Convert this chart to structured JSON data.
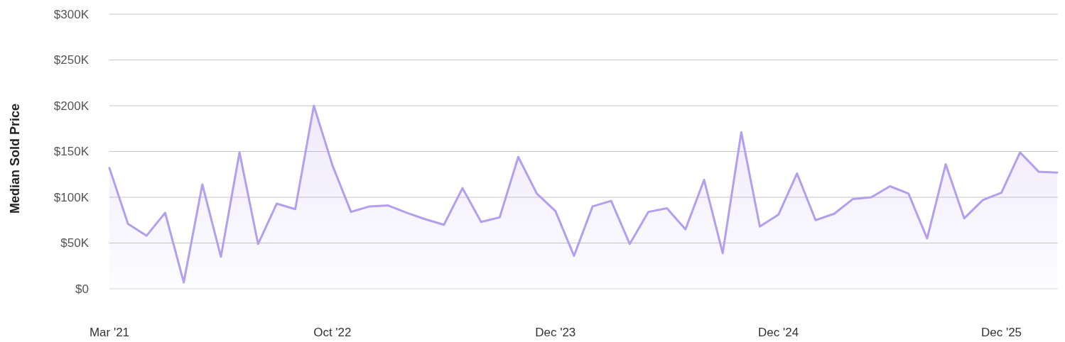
{
  "chart_data": {
    "type": "area",
    "ylabel": "Median Sold Price",
    "categories": [
      "Mar '21",
      null,
      null,
      null,
      null,
      null,
      null,
      null,
      null,
      null,
      null,
      null,
      "Oct '22",
      null,
      null,
      null,
      null,
      null,
      null,
      null,
      null,
      null,
      null,
      null,
      "Dec '23",
      null,
      null,
      null,
      null,
      null,
      null,
      null,
      null,
      null,
      null,
      null,
      "Dec '24",
      null,
      null,
      null,
      null,
      null,
      null,
      null,
      null,
      null,
      null,
      null,
      "Dec '25",
      null,
      null,
      null
    ],
    "series": [
      {
        "color": "#b39ef0",
        "values": [
          132,
          71,
          58,
          83,
          7,
          114,
          35,
          149,
          49,
          93,
          87,
          200,
          135,
          84,
          90,
          91,
          83,
          76,
          70,
          110,
          73,
          78,
          144,
          104,
          85,
          36,
          90,
          96,
          49,
          84,
          88,
          65,
          119,
          39,
          171,
          68,
          81,
          126,
          75,
          82,
          98,
          100,
          112,
          104,
          55,
          136,
          77,
          97,
          105,
          149,
          128,
          127
        ]
      }
    ],
    "ylim": [
      0,
      300
    ],
    "yticks": [
      {
        "value": 0,
        "label": "$0"
      },
      {
        "value": 50,
        "label": "$50K"
      },
      {
        "value": 100,
        "label": "$100K"
      },
      {
        "value": 150,
        "label": "$150K"
      },
      {
        "value": 200,
        "label": "$200K"
      },
      {
        "value": 250,
        "label": "$250K"
      },
      {
        "value": 300,
        "label": "$300K"
      }
    ],
    "grid": "y"
  }
}
